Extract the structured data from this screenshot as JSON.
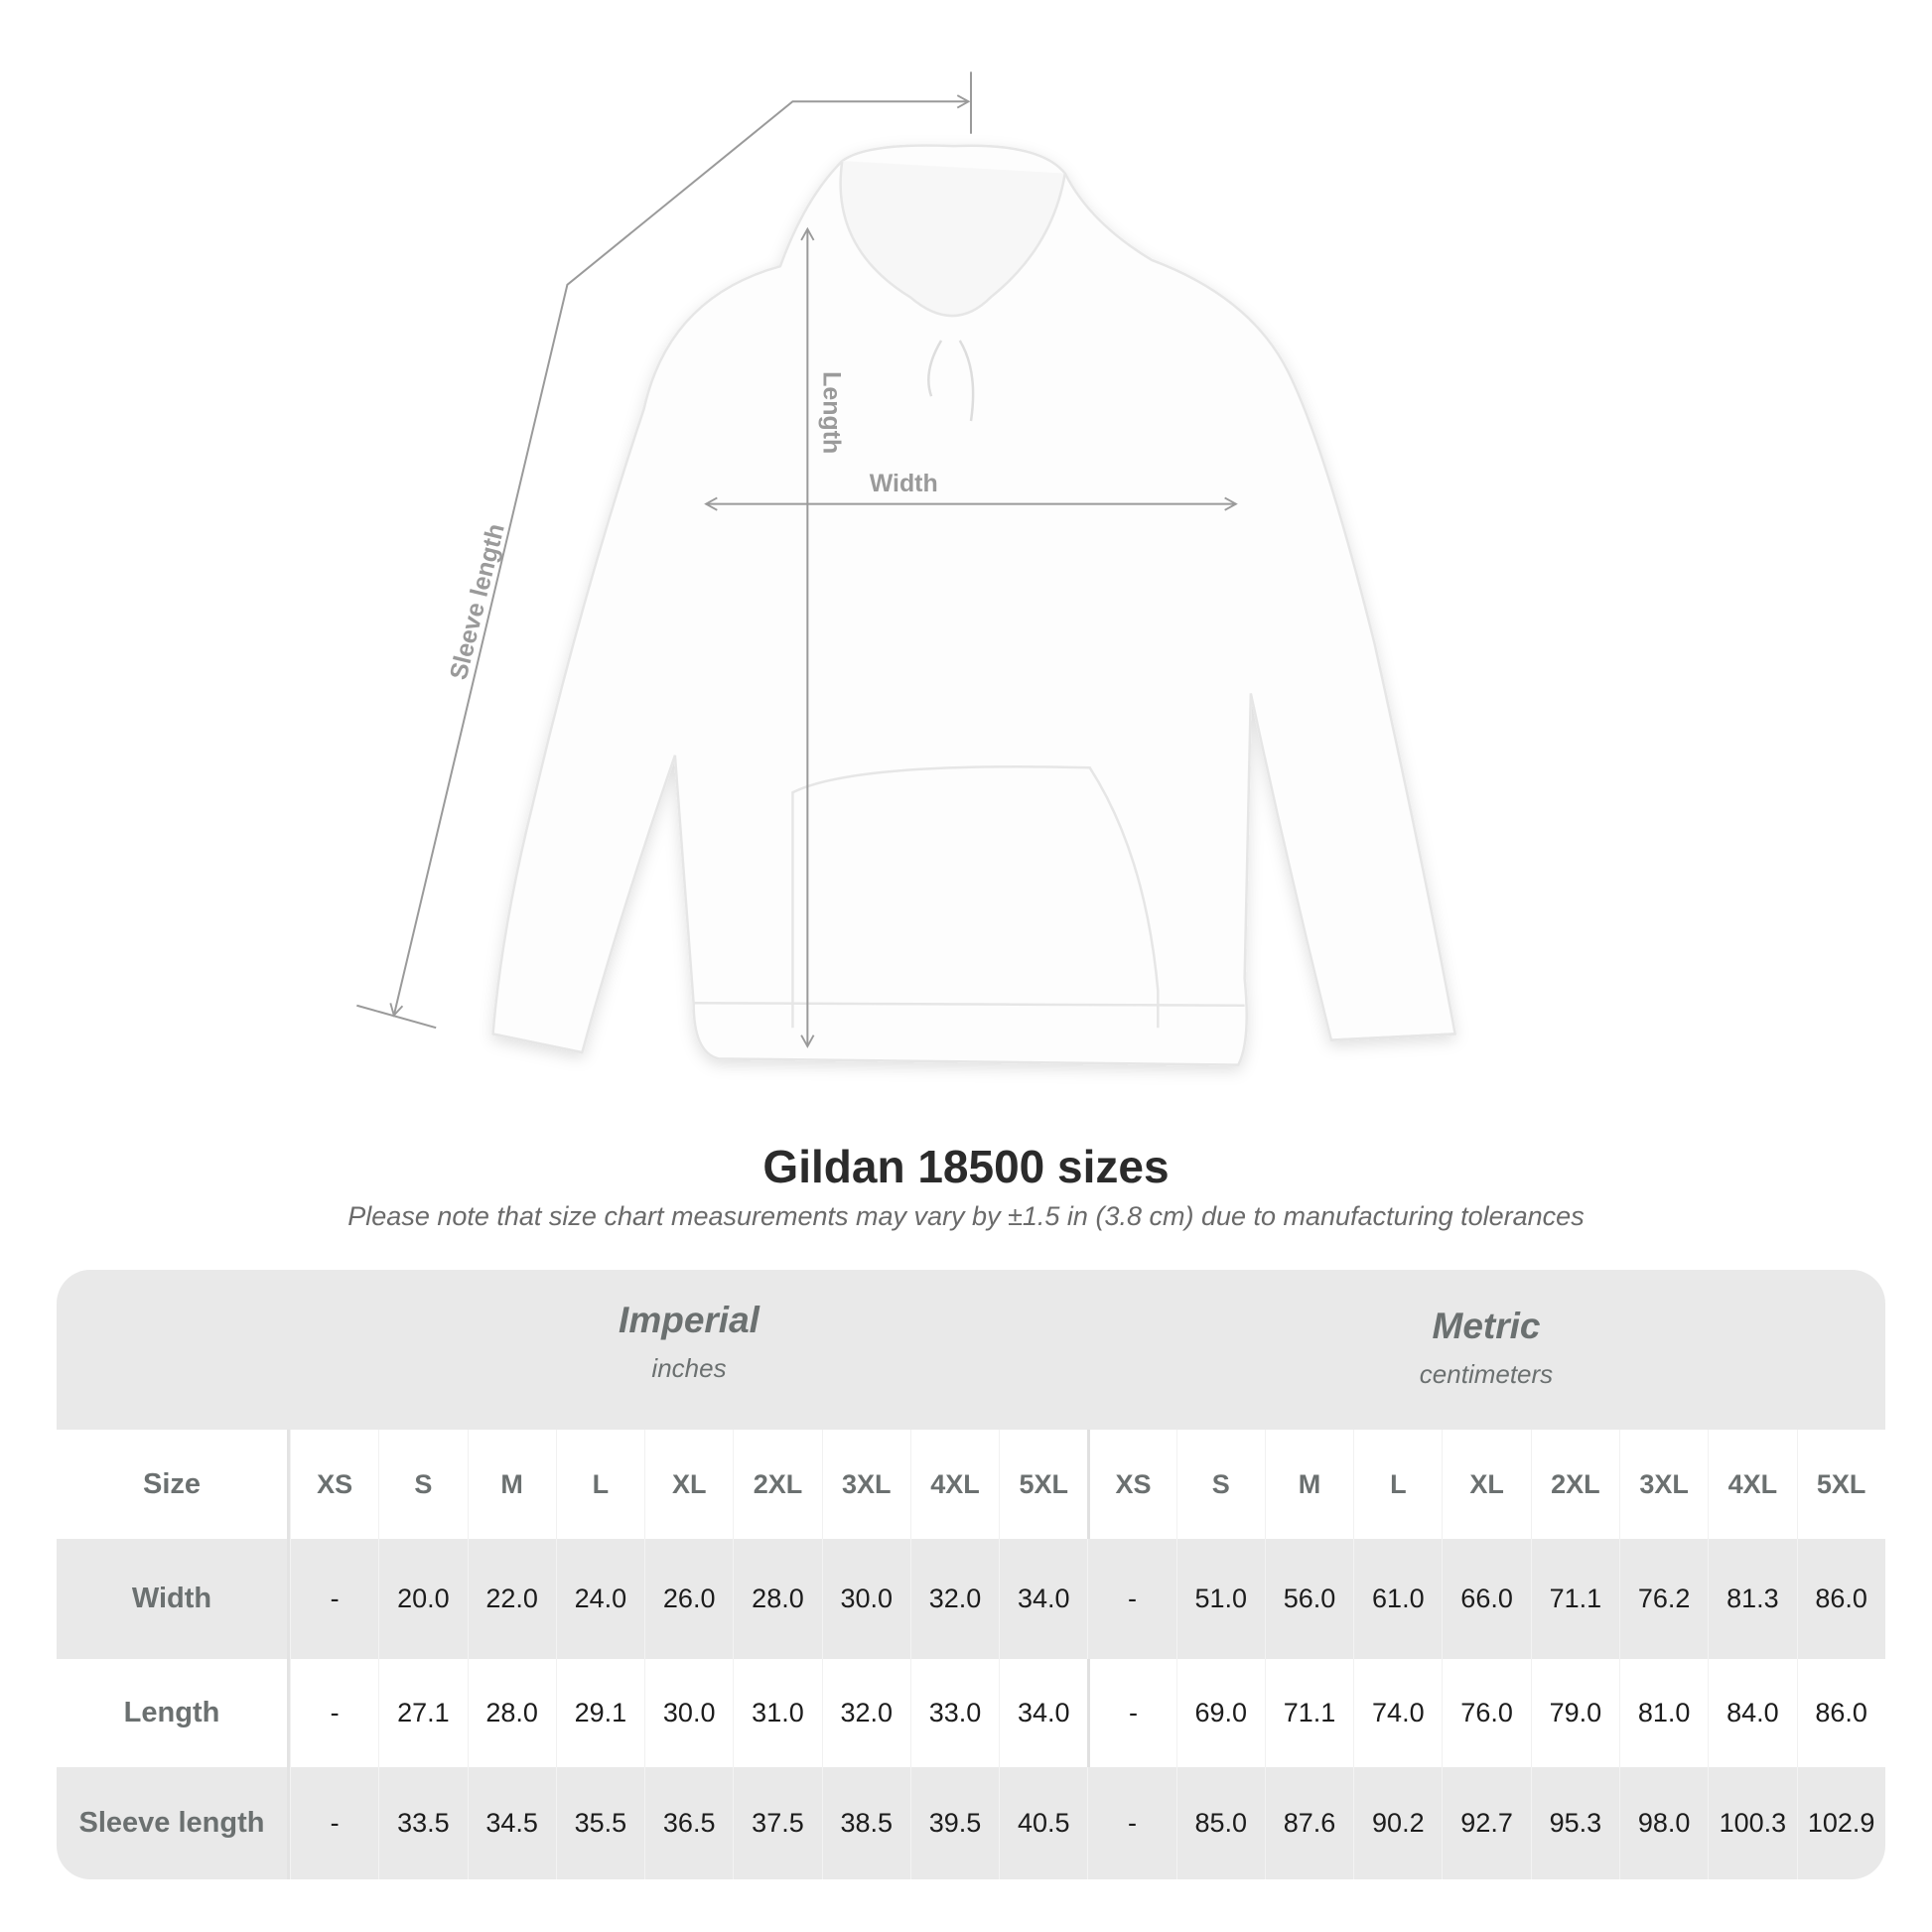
{
  "diagram": {
    "labels": {
      "sleeve": "Sleeve length",
      "length": "Length",
      "width": "Width"
    },
    "line_color": "#9a9a9a"
  },
  "title": "Gildan 18500 sizes",
  "note": "Please note that size chart measurements may vary by ±1.5 in (3.8 cm) due to manufacturing tolerances",
  "table": {
    "imperial": {
      "title": "Imperial",
      "unit": "inches"
    },
    "metric": {
      "title": "Metric",
      "unit": "centimeters"
    },
    "rows": [
      {
        "label": "Size",
        "imperial": [
          "XS",
          "S",
          "M",
          "L",
          "XL",
          "2XL",
          "3XL",
          "4XL",
          "5XL"
        ],
        "metric": [
          "XS",
          "S",
          "M",
          "L",
          "XL",
          "2XL",
          "3XL",
          "4XL",
          "5XL"
        ]
      },
      {
        "label": "Width",
        "imperial": [
          "-",
          "20.0",
          "22.0",
          "24.0",
          "26.0",
          "28.0",
          "30.0",
          "32.0",
          "34.0"
        ],
        "metric": [
          "-",
          "51.0",
          "56.0",
          "61.0",
          "66.0",
          "71.1",
          "76.2",
          "81.3",
          "86.0"
        ]
      },
      {
        "label": "Length",
        "imperial": [
          "-",
          "27.1",
          "28.0",
          "29.1",
          "30.0",
          "31.0",
          "32.0",
          "33.0",
          "34.0"
        ],
        "metric": [
          "-",
          "69.0",
          "71.1",
          "74.0",
          "76.0",
          "79.0",
          "81.0",
          "84.0",
          "86.0"
        ]
      },
      {
        "label": "Sleeve length",
        "imperial": [
          "-",
          "33.5",
          "34.5",
          "35.5",
          "36.5",
          "37.5",
          "38.5",
          "39.5",
          "40.5"
        ],
        "metric": [
          "-",
          "85.0",
          "87.6",
          "90.2",
          "92.7",
          "95.3",
          "98.0",
          "100.3",
          "102.9"
        ]
      }
    ],
    "colors": {
      "band": "#e9e9e9",
      "label_text": "#6b7070"
    }
  }
}
